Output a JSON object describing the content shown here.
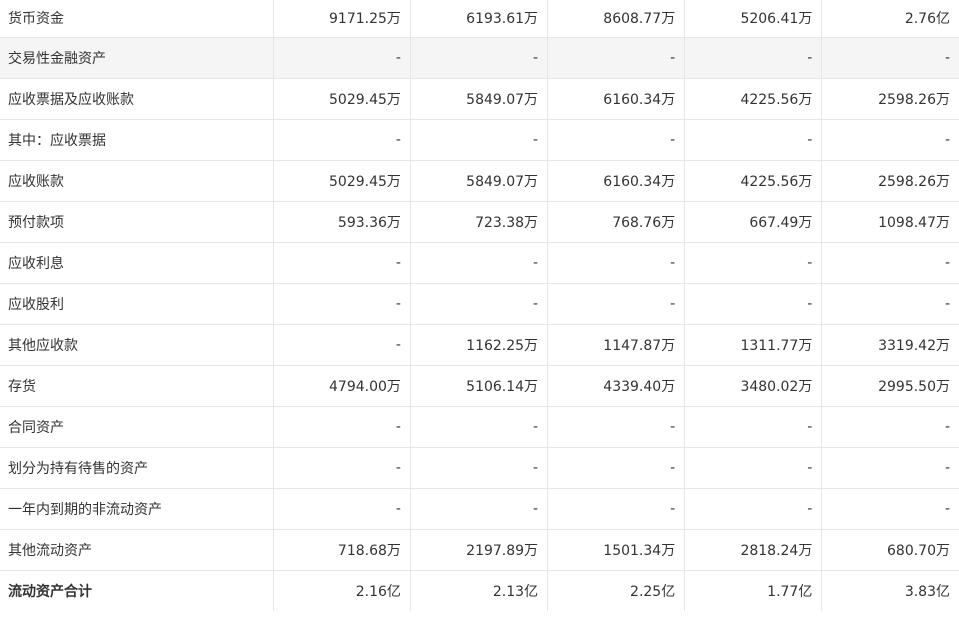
{
  "rows": [
    {
      "label": "货币资金",
      "values": [
        "9171.25万",
        "6193.61万",
        "8608.77万",
        "5206.41万",
        "2.76亿"
      ]
    },
    {
      "label": "交易性金融资产",
      "values": [
        "-",
        "-",
        "-",
        "-",
        "-"
      ]
    },
    {
      "label": "应收票据及应收账款",
      "values": [
        "5029.45万",
        "5849.07万",
        "6160.34万",
        "4225.56万",
        "2598.26万"
      ]
    },
    {
      "label": "其中：应收票据",
      "values": [
        "-",
        "-",
        "-",
        "-",
        "-"
      ]
    },
    {
      "label": "应收账款",
      "values": [
        "5029.45万",
        "5849.07万",
        "6160.34万",
        "4225.56万",
        "2598.26万"
      ]
    },
    {
      "label": "预付款项",
      "values": [
        "593.36万",
        "723.38万",
        "768.76万",
        "667.49万",
        "1098.47万"
      ]
    },
    {
      "label": "应收利息",
      "values": [
        "-",
        "-",
        "-",
        "-",
        "-"
      ]
    },
    {
      "label": "应收股利",
      "values": [
        "-",
        "-",
        "-",
        "-",
        "-"
      ]
    },
    {
      "label": "其他应收款",
      "values": [
        "-",
        "1162.25万",
        "1147.87万",
        "1311.77万",
        "3319.42万"
      ]
    },
    {
      "label": "存货",
      "values": [
        "4794.00万",
        "5106.14万",
        "4339.40万",
        "3480.02万",
        "2995.50万"
      ]
    },
    {
      "label": "合同资产",
      "values": [
        "-",
        "-",
        "-",
        "-",
        "-"
      ]
    },
    {
      "label": "划分为持有待售的资产",
      "values": [
        "-",
        "-",
        "-",
        "-",
        "-"
      ]
    },
    {
      "label": "一年内到期的非流动资产",
      "values": [
        "-",
        "-",
        "-",
        "-",
        "-"
      ]
    },
    {
      "label": "其他流动资产",
      "values": [
        "718.68万",
        "2197.89万",
        "1501.34万",
        "2818.24万",
        "680.70万"
      ]
    },
    {
      "label": "流动资产合计",
      "values": [
        "2.16亿",
        "2.13亿",
        "2.25亿",
        "1.77亿",
        "3.83亿"
      ]
    }
  ],
  "highlighted_row": 1,
  "total_row": 14
}
